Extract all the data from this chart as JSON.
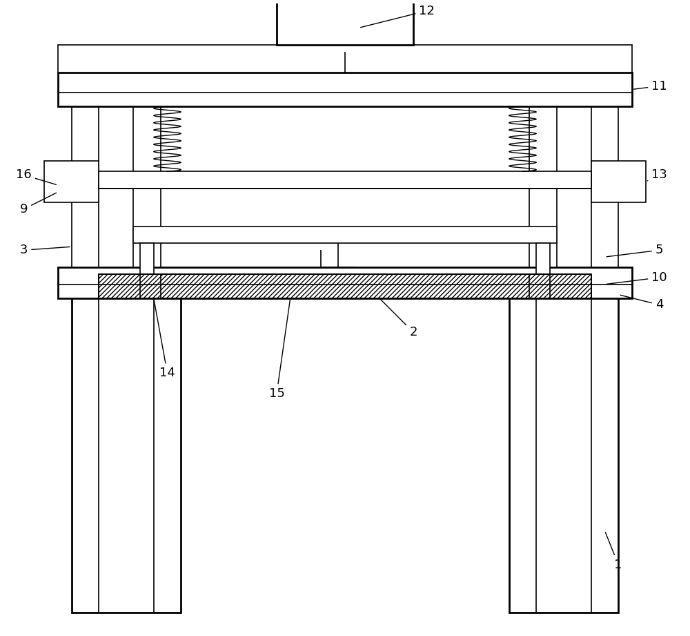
{
  "background_color": "#ffffff",
  "line_color": "#000000",
  "lw": 1.2,
  "tlw": 2.0,
  "fig_width": 10.0,
  "fig_height": 9.21
}
